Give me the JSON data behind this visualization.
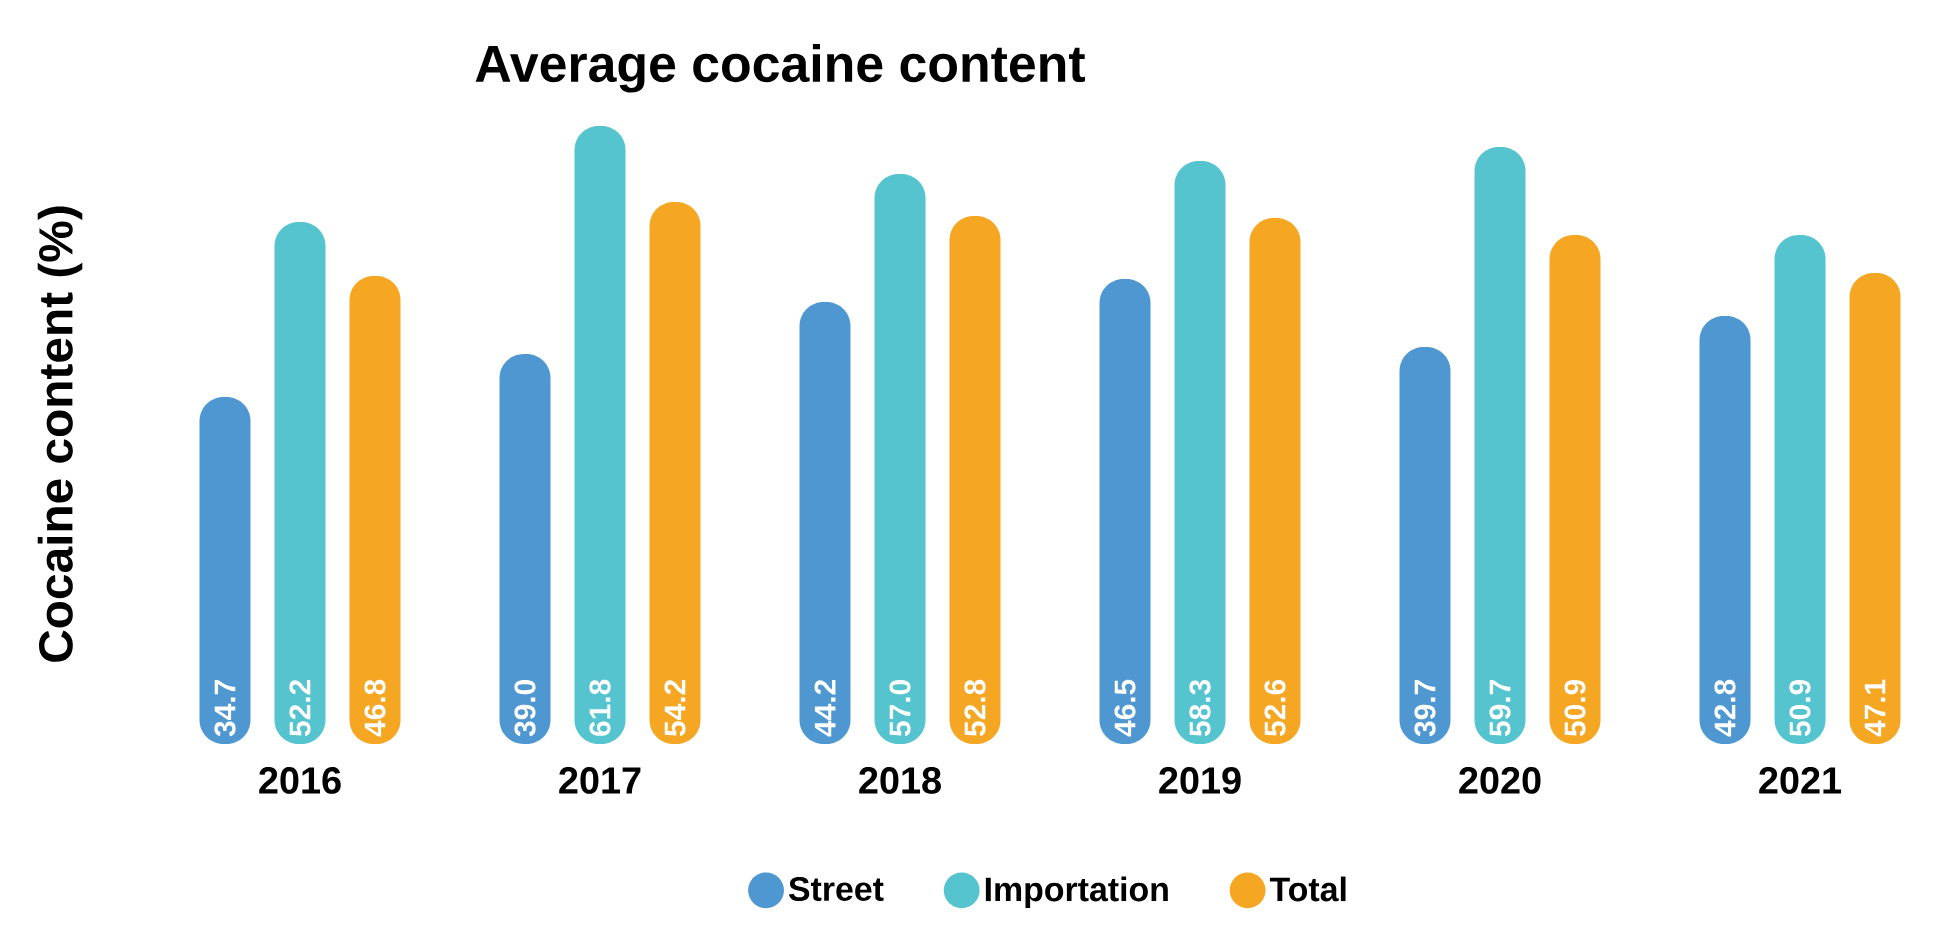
{
  "chart_data": {
    "type": "bar",
    "title": "Average cocaine content",
    "ylabel": "Cocaine content (%)",
    "categories": [
      "2016",
      "2017",
      "2018",
      "2019",
      "2020",
      "2021"
    ],
    "series": [
      {
        "name": "Street",
        "color": "#4f97d1",
        "values": [
          34.7,
          39.0,
          44.2,
          46.5,
          39.7,
          42.8
        ],
        "value_labels": [
          "34.7",
          "39.0",
          "44.2",
          "46.5",
          "39.7",
          "42.8"
        ]
      },
      {
        "name": "Importation",
        "color": "#55c4cf",
        "values": [
          52.2,
          61.8,
          57.0,
          58.3,
          59.7,
          50.9
        ],
        "value_labels": [
          "52.2",
          "61.8",
          "57.0",
          "58.3",
          "59.7",
          "50.9"
        ]
      },
      {
        "name": "Total",
        "color": "#f5a623",
        "values": [
          46.8,
          54.2,
          52.8,
          52.6,
          50.9,
          47.1
        ],
        "value_labels": [
          "46.8",
          "54.2",
          "52.8",
          "52.6",
          "50.9",
          "47.1"
        ]
      }
    ],
    "ylim": [
      0,
      62
    ],
    "legend": "bottom"
  }
}
